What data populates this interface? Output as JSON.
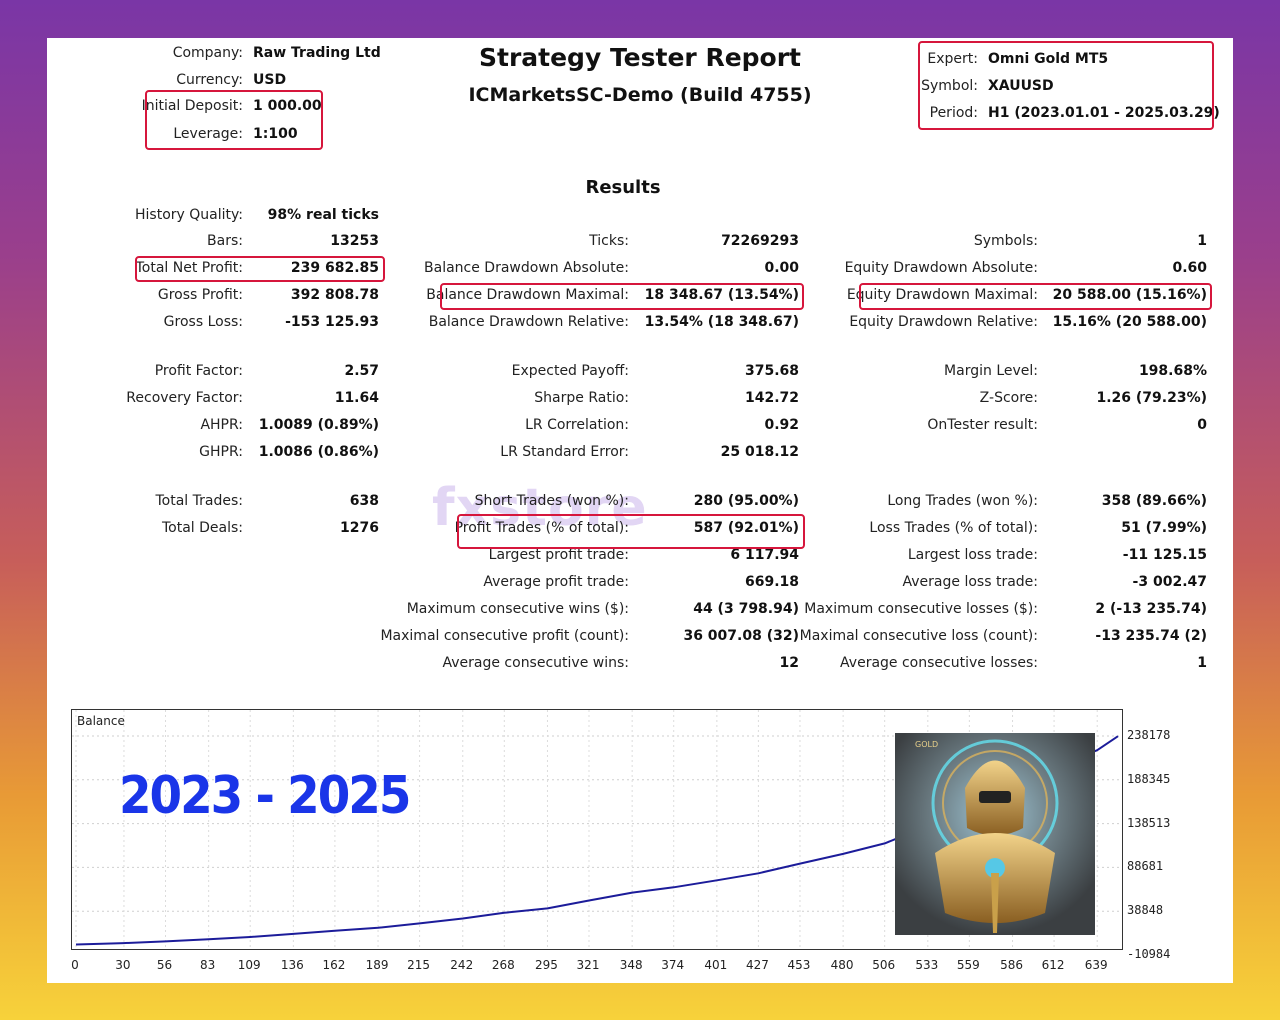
{
  "header": {
    "title": "Strategy Tester Report",
    "subtitle": "ICMarketsSC-Demo (Build 4755)",
    "company_label": "Company:",
    "company": "Raw Trading Ltd",
    "currency_label": "Currency:",
    "currency": "USD",
    "deposit_label": "Initial Deposit:",
    "deposit": "1 000.00",
    "leverage_label": "Leverage:",
    "leverage": "1:100",
    "expert_label": "Expert:",
    "expert": "Omni Gold MT5",
    "symbol_label": "Symbol:",
    "symbol": "XAUUSD",
    "period_label": "Period:",
    "period": "H1 (2023.01.01 - 2025.03.29)"
  },
  "results_title": "Results",
  "col1": [
    {
      "label": "History Quality:",
      "value": "98% real ticks"
    },
    {
      "label": "Bars:",
      "value": "13253"
    },
    {
      "label": "Total Net Profit:",
      "value": "239 682.85"
    },
    {
      "label": "Gross Profit:",
      "value": "392 808.78"
    },
    {
      "label": "Gross Loss:",
      "value": "-153 125.93"
    },
    {
      "label": "Profit Factor:",
      "value": "2.57"
    },
    {
      "label": "Recovery Factor:",
      "value": "11.64"
    },
    {
      "label": "AHPR:",
      "value": "1.0089 (0.89%)"
    },
    {
      "label": "GHPR:",
      "value": "1.0086 (0.86%)"
    },
    {
      "label": "Total Trades:",
      "value": "638"
    },
    {
      "label": "Total Deals:",
      "value": "1276"
    }
  ],
  "col2": [
    {
      "label": "Ticks:",
      "value": "72269293"
    },
    {
      "label": "Balance Drawdown Absolute:",
      "value": "0.00"
    },
    {
      "label": "Balance Drawdown Maximal:",
      "value": "18 348.67 (13.54%)"
    },
    {
      "label": "Balance Drawdown Relative:",
      "value": "13.54% (18 348.67)"
    },
    {
      "label": "Expected Payoff:",
      "value": "375.68"
    },
    {
      "label": "Sharpe Ratio:",
      "value": "142.72"
    },
    {
      "label": "LR Correlation:",
      "value": "0.92"
    },
    {
      "label": "LR Standard Error:",
      "value": "25 018.12"
    },
    {
      "label": "Short Trades (won %):",
      "value": "280 (95.00%)"
    },
    {
      "label": "Profit Trades (% of total):",
      "value": "587 (92.01%)"
    },
    {
      "label": "Largest profit trade:",
      "value": "6 117.94"
    },
    {
      "label": "Average profit trade:",
      "value": "669.18"
    },
    {
      "label": "Maximum consecutive wins ($):",
      "value": "44 (3 798.94)"
    },
    {
      "label": "Maximal consecutive profit (count):",
      "value": "36 007.08 (32)"
    },
    {
      "label": "Average consecutive wins:",
      "value": "12"
    }
  ],
  "col3": [
    {
      "label": "Symbols:",
      "value": "1"
    },
    {
      "label": "Equity Drawdown Absolute:",
      "value": "0.60"
    },
    {
      "label": "Equity Drawdown Maximal:",
      "value": "20 588.00 (15.16%)"
    },
    {
      "label": "Equity Drawdown Relative:",
      "value": "15.16% (20 588.00)"
    },
    {
      "label": "Margin Level:",
      "value": "198.68%"
    },
    {
      "label": "Z-Score:",
      "value": "1.26 (79.23%)"
    },
    {
      "label": "OnTester result:",
      "value": "0"
    },
    {
      "label": "Long Trades (won %):",
      "value": "358 (89.66%)"
    },
    {
      "label": "Loss Trades (% of total):",
      "value": "51 (7.99%)"
    },
    {
      "label": "Largest loss trade:",
      "value": "-11 125.15"
    },
    {
      "label": "Average loss trade:",
      "value": "-3 002.47"
    },
    {
      "label": "Maximum consecutive losses ($):",
      "value": "2 (-13 235.74)"
    },
    {
      "label": "Maximal consecutive loss (count):",
      "value": "-13 235.74 (2)"
    },
    {
      "label": "Average consecutive losses:",
      "value": "1"
    }
  ],
  "overlay": {
    "years": "2023 - 2025",
    "watermark": "fxstore",
    "robot_badge": "GOLD"
  },
  "chart_data": {
    "type": "line",
    "title": "Balance",
    "x_ticks": [
      0,
      30,
      56,
      83,
      109,
      136,
      162,
      189,
      215,
      242,
      268,
      295,
      321,
      348,
      374,
      401,
      427,
      453,
      480,
      506,
      533,
      559,
      586,
      612,
      639
    ],
    "y_ticks": [
      238178,
      188345,
      138513,
      88681,
      38848,
      -10984
    ],
    "ylim": [
      -10984,
      238178
    ],
    "xlim": [
      0,
      652
    ],
    "series": [
      {
        "color": "#1c1c9a",
        "x": [
          0,
          30,
          56,
          83,
          109,
          136,
          162,
          189,
          215,
          242,
          268,
          295,
          321,
          348,
          374,
          401,
          427,
          453,
          480,
          506,
          533,
          559,
          586,
          612,
          639,
          652
        ],
        "y": [
          1000,
          2500,
          4500,
          7000,
          9500,
          13000,
          16500,
          20000,
          25000,
          30500,
          37000,
          42000,
          51000,
          60000,
          66000,
          74000,
          82000,
          93000,
          104000,
          116000,
          136000,
          157000,
          181000,
          202000,
          222000,
          238000
        ]
      }
    ]
  },
  "colors": {
    "highlight": "#d6163c",
    "years_text": "#1a35e8",
    "balance_line": "#1c1c9a"
  }
}
